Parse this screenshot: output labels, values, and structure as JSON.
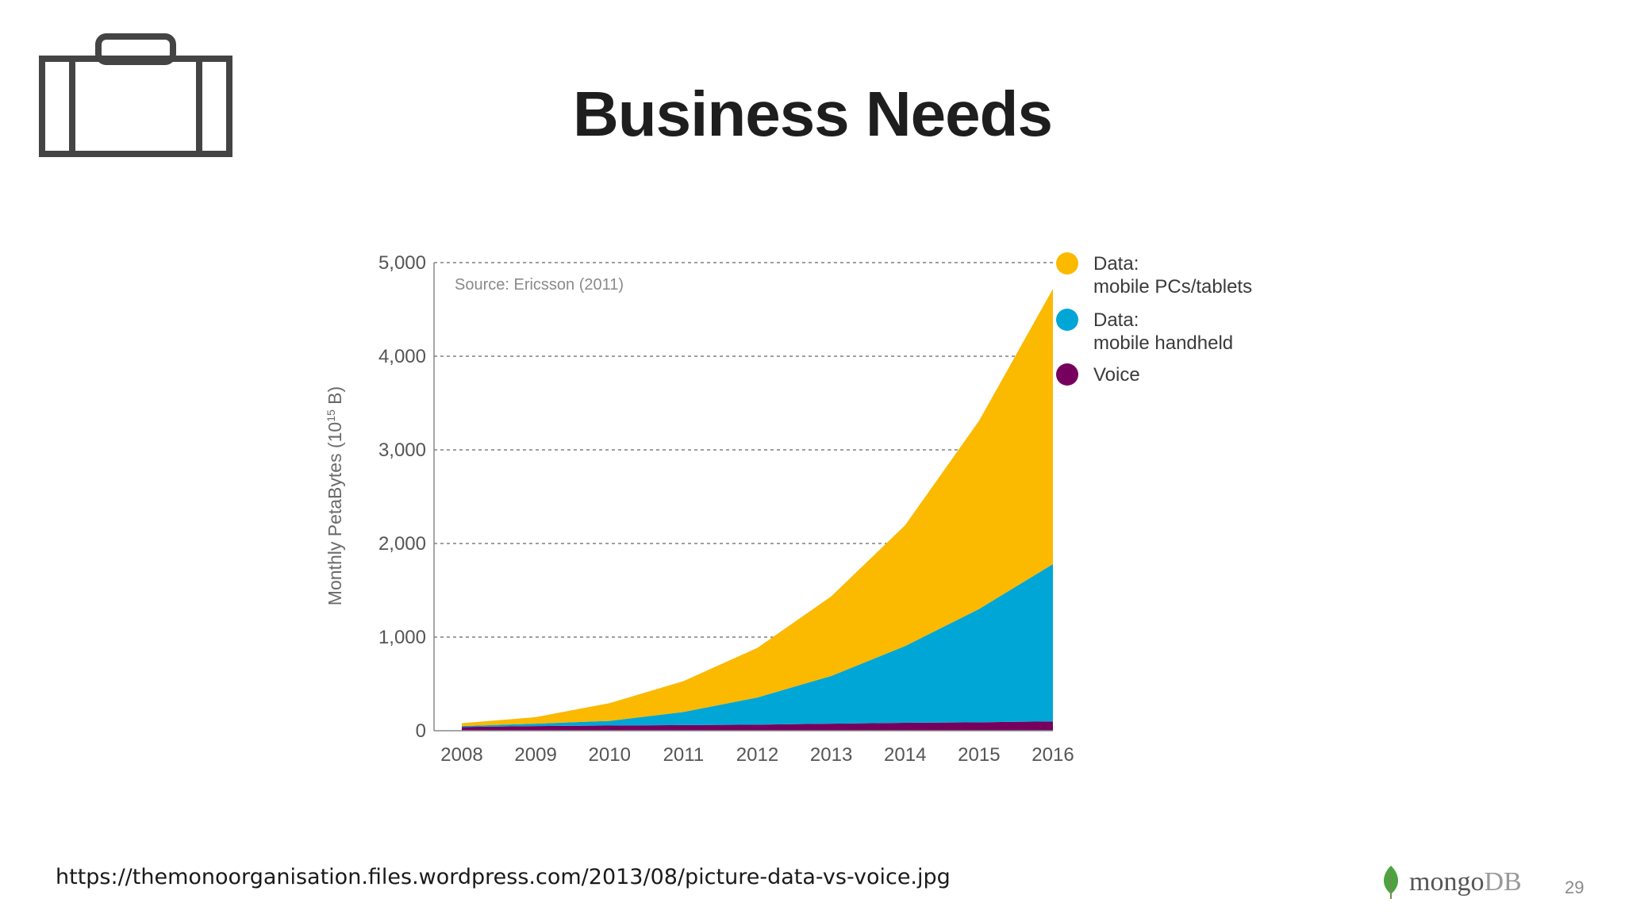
{
  "slide": {
    "title": "Business Needs",
    "footer_url": "https://themonoorganisation.files.wordpress.com/2013/08/picture-data-vs-voice.jpg",
    "logo_text_a": "mongo",
    "logo_text_b": "DB",
    "page_number": "29",
    "icons": [
      "briefcase-icon",
      "mongodb-leaf-icon"
    ]
  },
  "chart_data": {
    "type": "area",
    "stacked": true,
    "x": [
      2008,
      2009,
      2010,
      2011,
      2012,
      2013,
      2014,
      2015,
      2016
    ],
    "x_tick_labels": [
      "2008",
      "2009",
      "2010",
      "2011",
      "2012",
      "2013",
      "2014",
      "2015",
      "2016"
    ],
    "ylim": [
      0,
      5000
    ],
    "y_ticks": [
      0,
      1000,
      2000,
      3000,
      4000,
      5000
    ],
    "y_tick_labels": [
      "0",
      "1,000",
      "2,000",
      "3,000",
      "4,000",
      "5,000"
    ],
    "ylabel_main": "Monthly PetaBytes (10",
    "ylabel_sup": "15",
    "ylabel_end": " B)",
    "annotation": "Source: Ericsson (2011)",
    "grid": "horizontal dashed",
    "legend_position": "right",
    "series": [
      {
        "name": "Voice",
        "color": "#76005e",
        "values": [
          40,
          50,
          55,
          60,
          65,
          75,
          85,
          90,
          100
        ]
      },
      {
        "name": "Data: mobile handheld",
        "legend_line1": "Data:",
        "legend_line2": "mobile handheld",
        "color": "#00a6d6",
        "values": [
          10,
          25,
          50,
          140,
          290,
          510,
          820,
          1210,
          1680
        ]
      },
      {
        "name": "Data: mobile PCs/tablets",
        "legend_line1": "Data:",
        "legend_line2": "mobile PCs/tablets",
        "color": "#fbb900",
        "values": [
          30,
          70,
          190,
          330,
          530,
          850,
          1290,
          2010,
          2940
        ]
      }
    ],
    "legend_order": [
      2,
      1,
      0
    ]
  }
}
